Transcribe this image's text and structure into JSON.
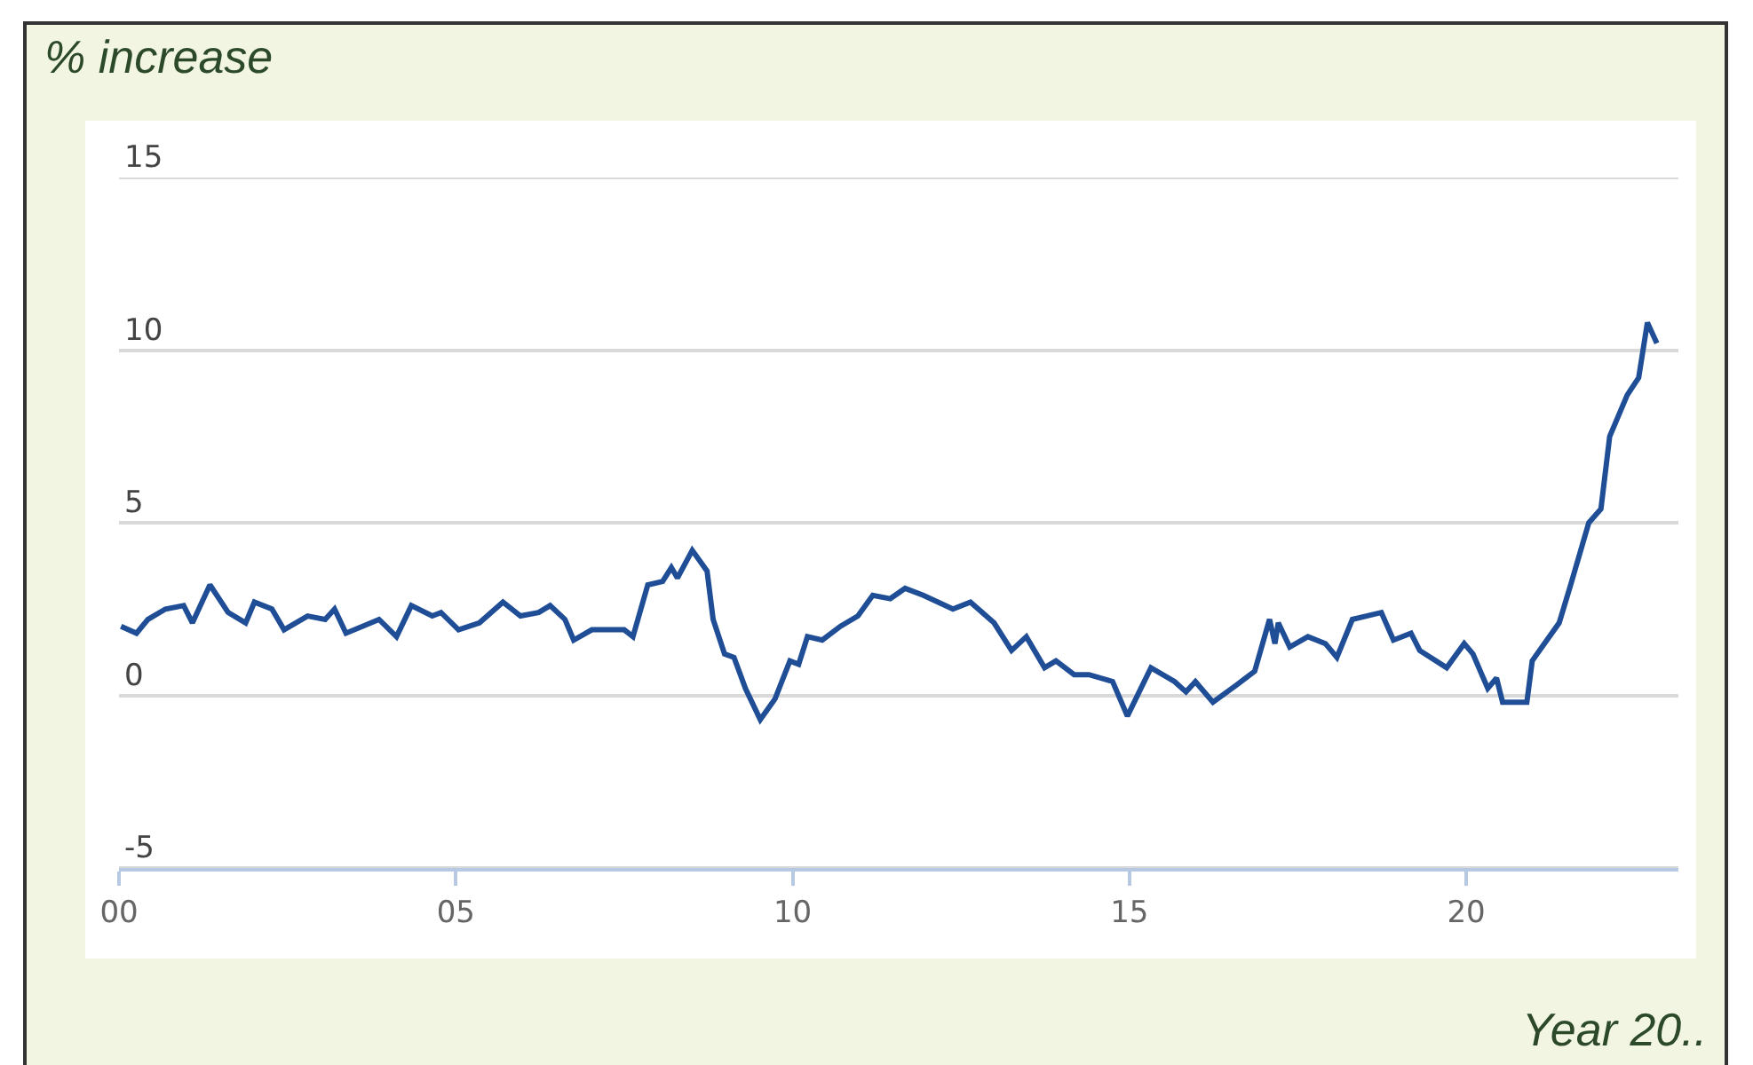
{
  "chart_data": {
    "type": "line",
    "ylabel": "% increase",
    "xlabel": "Year 20..",
    "x": [
      2000.03,
      2000.26,
      2000.43,
      2000.69,
      2000.96,
      2001.09,
      2001.35,
      2001.62,
      2001.88,
      2002.01,
      2002.27,
      2002.45,
      2002.8,
      2003.06,
      2003.2,
      2003.37,
      2003.86,
      2004.12,
      2004.34,
      2004.65,
      2004.78,
      2005.04,
      2005.35,
      2005.7,
      2005.96,
      2006.23,
      2006.4,
      2006.62,
      2006.75,
      2007.02,
      2007.5,
      2007.63,
      2007.85,
      2008.07,
      2008.2,
      2008.29,
      2008.51,
      2008.73,
      2008.82,
      2008.99,
      2009.13,
      2009.3,
      2009.52,
      2009.74,
      2009.96,
      2010.09,
      2010.22,
      2010.44,
      2010.71,
      2010.97,
      2011.19,
      2011.45,
      2011.67,
      2011.94,
      2012.38,
      2012.64,
      2012.99,
      2013.25,
      2013.47,
      2013.74,
      2013.91,
      2014.18,
      2014.4,
      2014.75,
      2014.97,
      2015.32,
      2015.67,
      2015.84,
      2015.98,
      2016.24,
      2016.59,
      2016.86,
      2017.08,
      2017.16,
      2017.21,
      2017.38,
      2017.65,
      2017.91,
      2018.08,
      2018.31,
      2018.52,
      2018.74,
      2018.92,
      2019.18,
      2019.31,
      2019.71,
      2019.97,
      2020.1,
      2020.32,
      2020.45,
      2020.54,
      2020.9,
      2020.98,
      2021.16,
      2021.38,
      2021.55,
      2021.82,
      2022.0,
      2022.13,
      2022.39,
      2022.56,
      2022.69,
      2022.83
    ],
    "series": [
      {
        "color": "#1f4e96",
        "values": [
          2.0,
          1.8,
          2.2,
          2.5,
          2.6,
          2.1,
          3.2,
          2.4,
          2.1,
          2.7,
          2.5,
          1.9,
          2.3,
          2.2,
          2.5,
          1.8,
          2.2,
          1.7,
          2.6,
          2.3,
          2.4,
          1.9,
          2.1,
          2.7,
          2.3,
          2.4,
          2.6,
          2.2,
          1.6,
          1.9,
          1.9,
          1.7,
          3.2,
          3.3,
          3.7,
          3.4,
          4.2,
          3.6,
          2.2,
          1.2,
          1.1,
          0.2,
          -0.7,
          -0.1,
          1.0,
          0.9,
          1.7,
          1.6,
          2.0,
          2.3,
          2.9,
          2.8,
          3.1,
          2.9,
          2.5,
          2.7,
          2.1,
          1.3,
          1.7,
          0.8,
          1.0,
          0.6,
          0.6,
          0.4,
          -0.6,
          0.8,
          0.4,
          0.1,
          0.4,
          -0.2,
          0.3,
          0.7,
          2.2,
          1.5,
          2.1,
          1.4,
          1.7,
          1.5,
          1.1,
          2.2,
          2.3,
          2.4,
          1.6,
          1.8,
          1.3,
          0.8,
          1.5,
          1.2,
          0.2,
          0.5,
          -0.2,
          -0.2,
          1.0,
          1.5,
          2.1,
          3.2,
          5.0,
          5.4,
          7.5,
          8.7,
          9.2,
          10.8,
          10.2
        ]
      }
    ],
    "xlim": [
      2000,
      2023.15
    ],
    "xticks": [
      {
        "value": 2000,
        "label": "00"
      },
      {
        "value": 2005,
        "label": "05"
      },
      {
        "value": 2010,
        "label": "10"
      },
      {
        "value": 2015,
        "label": "15"
      },
      {
        "value": 2020,
        "label": "20"
      }
    ],
    "ylim": [
      -5,
      15
    ],
    "yticks": [
      -5,
      0,
      5,
      10,
      15
    ],
    "grid": "y",
    "marker": "none",
    "line_style": "solid"
  }
}
